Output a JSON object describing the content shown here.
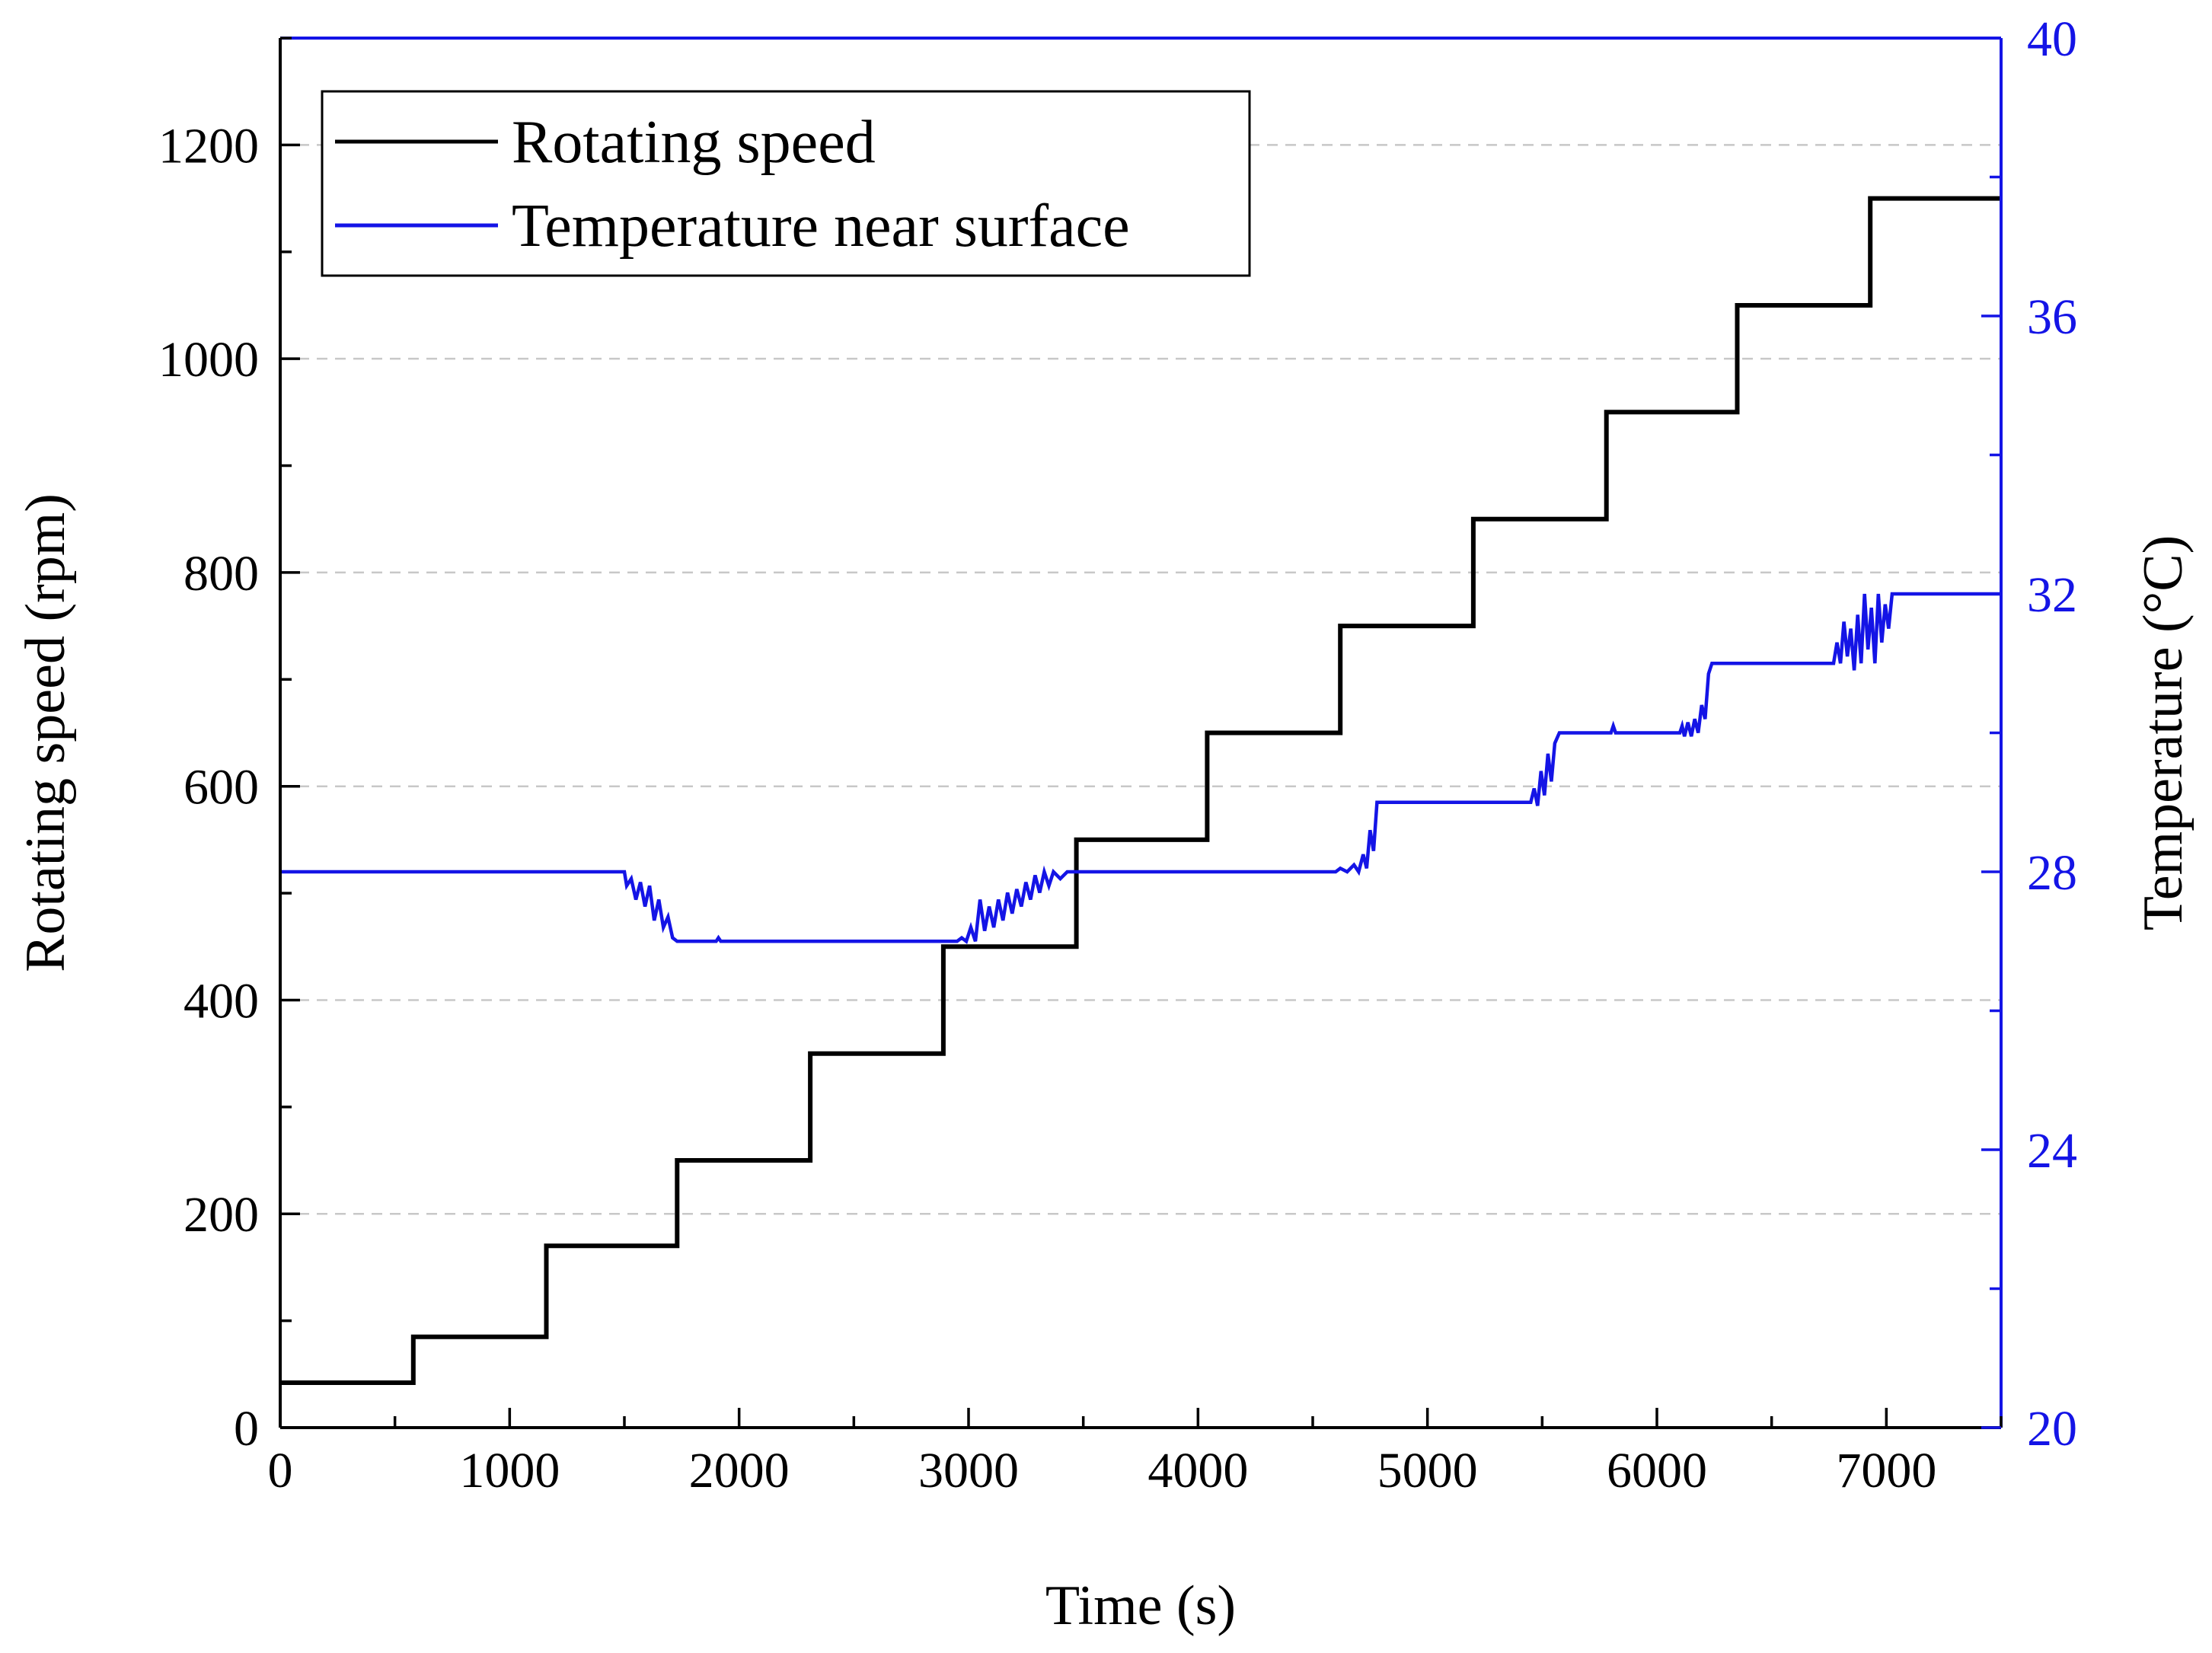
{
  "chart_data": {
    "type": "line",
    "title": "",
    "xlabel": "Time (s)",
    "ylabel_left": "Rotating speed (rpm)",
    "ylabel_right": "Temperature (°C)",
    "xlim": [
      0,
      7500
    ],
    "ylim_left": [
      0,
      1300
    ],
    "ylim_right": [
      20,
      40
    ],
    "x_ticks": [
      0,
      1000,
      2000,
      3000,
      4000,
      5000,
      6000,
      7000
    ],
    "y_left_ticks": [
      0,
      200,
      400,
      600,
      800,
      1000,
      1200
    ],
    "y_right_ticks": [
      20,
      24,
      28,
      32,
      36,
      40
    ],
    "grid": "horizontal-dashed",
    "legend_position": "top-left",
    "colors": {
      "rotating_speed": "#000000",
      "temperature": "#1414e6",
      "right_axis": "#1414e6",
      "grid": "#c8c8c8"
    },
    "series": [
      {
        "name": "Rotating speed",
        "axis": "left",
        "color": "#000000",
        "points": [
          [
            0,
            42
          ],
          [
            580,
            42
          ],
          [
            580,
            85
          ],
          [
            1160,
            85
          ],
          [
            1160,
            170
          ],
          [
            1730,
            170
          ],
          [
            1730,
            250
          ],
          [
            2310,
            250
          ],
          [
            2310,
            350
          ],
          [
            2890,
            350
          ],
          [
            2890,
            450
          ],
          [
            3470,
            450
          ],
          [
            3470,
            550
          ],
          [
            4040,
            550
          ],
          [
            4040,
            650
          ],
          [
            4620,
            650
          ],
          [
            4620,
            750
          ],
          [
            5200,
            750
          ],
          [
            5200,
            850
          ],
          [
            5780,
            850
          ],
          [
            5780,
            950
          ],
          [
            6350,
            950
          ],
          [
            6350,
            1050
          ],
          [
            6930,
            1050
          ],
          [
            6930,
            1150
          ],
          [
            7500,
            1150
          ]
        ]
      },
      {
        "name": "Temperature near surface",
        "axis": "right",
        "color": "#1414e6",
        "points": [
          [
            0,
            28.0
          ],
          [
            1500,
            28.0
          ],
          [
            1510,
            27.8
          ],
          [
            1530,
            27.9
          ],
          [
            1550,
            27.6
          ],
          [
            1570,
            27.85
          ],
          [
            1590,
            27.5
          ],
          [
            1610,
            27.8
          ],
          [
            1630,
            27.3
          ],
          [
            1650,
            27.6
          ],
          [
            1670,
            27.2
          ],
          [
            1690,
            27.35
          ],
          [
            1710,
            27.05
          ],
          [
            1730,
            27.0
          ],
          [
            1900,
            27.0
          ],
          [
            1910,
            27.05
          ],
          [
            1920,
            27.0
          ],
          [
            2950,
            27.0
          ],
          [
            2970,
            27.05
          ],
          [
            2990,
            27.0
          ],
          [
            3010,
            27.2
          ],
          [
            3030,
            27.0
          ],
          [
            3050,
            27.6
          ],
          [
            3070,
            27.15
          ],
          [
            3090,
            27.5
          ],
          [
            3110,
            27.2
          ],
          [
            3130,
            27.6
          ],
          [
            3150,
            27.3
          ],
          [
            3170,
            27.7
          ],
          [
            3190,
            27.4
          ],
          [
            3210,
            27.75
          ],
          [
            3230,
            27.5
          ],
          [
            3250,
            27.85
          ],
          [
            3270,
            27.6
          ],
          [
            3290,
            27.95
          ],
          [
            3310,
            27.7
          ],
          [
            3330,
            28.0
          ],
          [
            3350,
            27.8
          ],
          [
            3370,
            28.0
          ],
          [
            3400,
            27.9
          ],
          [
            3430,
            28.0
          ],
          [
            4600,
            28.0
          ],
          [
            4620,
            28.05
          ],
          [
            4650,
            28.0
          ],
          [
            4680,
            28.1
          ],
          [
            4700,
            28.0
          ],
          [
            4720,
            28.25
          ],
          [
            4735,
            28.05
          ],
          [
            4750,
            28.6
          ],
          [
            4765,
            28.3
          ],
          [
            4780,
            29.0
          ],
          [
            5450,
            29.0
          ],
          [
            5465,
            29.2
          ],
          [
            5480,
            28.95
          ],
          [
            5495,
            29.45
          ],
          [
            5510,
            29.1
          ],
          [
            5525,
            29.7
          ],
          [
            5540,
            29.3
          ],
          [
            5555,
            29.85
          ],
          [
            5575,
            30.0
          ],
          [
            5800,
            30.0
          ],
          [
            5810,
            30.1
          ],
          [
            5820,
            30.0
          ],
          [
            6100,
            30.0
          ],
          [
            6110,
            30.1
          ],
          [
            6120,
            29.95
          ],
          [
            6135,
            30.15
          ],
          [
            6150,
            29.95
          ],
          [
            6165,
            30.2
          ],
          [
            6180,
            30.0
          ],
          [
            6195,
            30.4
          ],
          [
            6210,
            30.2
          ],
          [
            6225,
            30.85
          ],
          [
            6240,
            31.0
          ],
          [
            6770,
            31.0
          ],
          [
            6785,
            31.3
          ],
          [
            6800,
            31.0
          ],
          [
            6815,
            31.6
          ],
          [
            6830,
            31.1
          ],
          [
            6845,
            31.5
          ],
          [
            6860,
            30.9
          ],
          [
            6875,
            31.7
          ],
          [
            6890,
            31.0
          ],
          [
            6905,
            32.0
          ],
          [
            6920,
            31.2
          ],
          [
            6935,
            31.8
          ],
          [
            6950,
            31.0
          ],
          [
            6965,
            32.0
          ],
          [
            6980,
            31.3
          ],
          [
            6995,
            31.85
          ],
          [
            7010,
            31.5
          ],
          [
            7025,
            32.0
          ],
          [
            7050,
            32.0
          ],
          [
            7500,
            32.0
          ]
        ]
      }
    ]
  }
}
